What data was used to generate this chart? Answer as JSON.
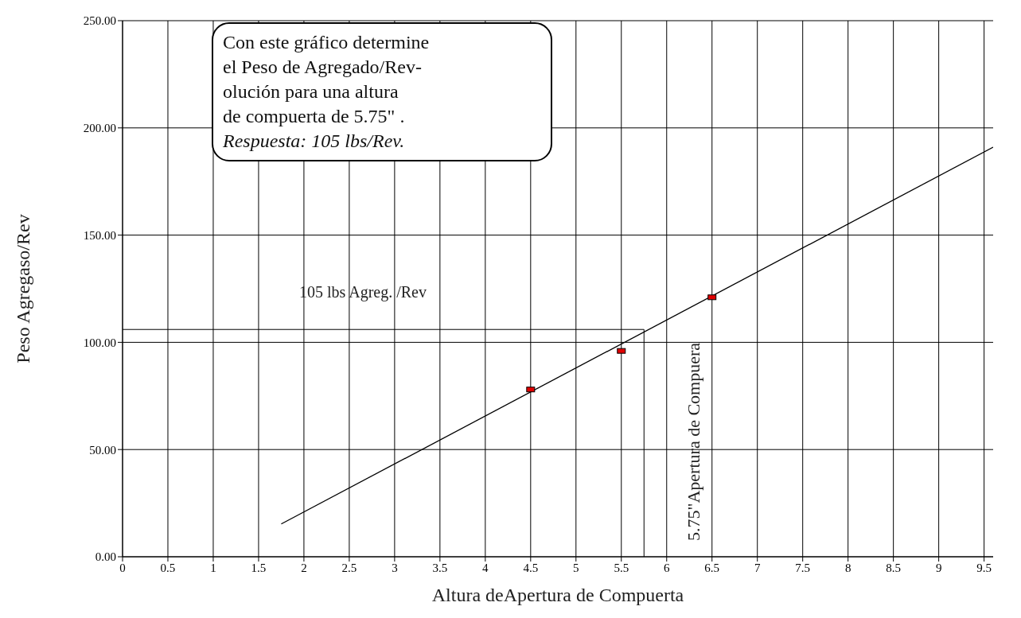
{
  "chart_data": {
    "type": "scatter",
    "xlabel": "Altura deApertura de Compuerta",
    "ylabel": "Peso Agregaso/Rev",
    "xlim": [
      0,
      9.6
    ],
    "xticks": [
      0,
      0.5,
      1,
      1.5,
      2,
      2.5,
      3,
      3.5,
      4,
      4.5,
      5,
      5.5,
      6,
      6.5,
      7,
      7.5,
      8,
      8.5,
      9,
      9.5
    ],
    "ylim": [
      0,
      250
    ],
    "yticks": [
      {
        "value": 0,
        "label": "0.00"
      },
      {
        "value": 50,
        "label": "50.00"
      },
      {
        "value": 100,
        "label": "100.00"
      },
      {
        "value": 150,
        "label": "150.00"
      },
      {
        "value": 200,
        "label": "200.00"
      },
      {
        "value": 250,
        "label": "250.00"
      }
    ],
    "grid": true,
    "legend": false,
    "series": [
      {
        "color": "#e00000",
        "marker": "square",
        "x": [
          4.5,
          5.5,
          6.5
        ],
        "values": [
          78,
          96,
          121
        ]
      },
      {
        "type": "line",
        "color": "#000000",
        "marker": "none",
        "line_style": "solid",
        "x": [
          1.75,
          9.6
        ],
        "values": [
          15.3,
          191
        ]
      }
    ],
    "ref_lines": [
      {
        "axis": "y",
        "value": 106,
        "label": "105 lbs Agreg. /Rev",
        "color": "#000000"
      },
      {
        "axis": "x",
        "value": 5.75,
        "label": "5.75\"Apertura de Compuera",
        "color": "#000000"
      }
    ],
    "annotations": [
      "Con este gráfico determine\nel Peso de Agregado/Rev-\nolución para una altura\nde compuerta de 5.75\" .",
      "Respuesta: 105 lbs/Rev."
    ]
  }
}
